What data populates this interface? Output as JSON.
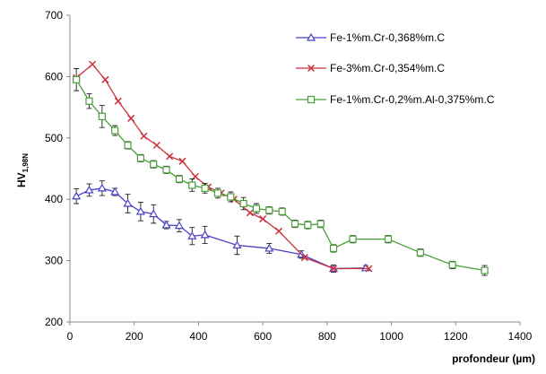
{
  "chart_data": {
    "type": "line",
    "xlabel": "profondeur (µm)",
    "ylabel": "HV",
    "ylabel_subscript": "1,98N",
    "xlim": [
      0,
      1400
    ],
    "ylim": [
      200,
      700
    ],
    "xticks": [
      0,
      200,
      400,
      600,
      800,
      1000,
      1200,
      1400
    ],
    "yticks": [
      200,
      300,
      400,
      500,
      600,
      700
    ],
    "grid": false,
    "legend_position": "top-right",
    "series": [
      {
        "name": "Fe-1%m.Cr-0,368%m.C",
        "color": "#4a3fc6",
        "marker": "triangle",
        "x": [
          20,
          60,
          100,
          140,
          180,
          220,
          260,
          300,
          340,
          380,
          420,
          520,
          620,
          720,
          820,
          920
        ],
        "y": [
          405,
          415,
          418,
          412,
          393,
          380,
          376,
          358,
          357,
          340,
          342,
          325,
          320,
          310,
          287,
          288
        ],
        "err": [
          12,
          10,
          12,
          6,
          15,
          15,
          15,
          6,
          10,
          14,
          14,
          15,
          8,
          6,
          6,
          4
        ]
      },
      {
        "name": "Fe-3%m.Cr-0,354%m.C",
        "color": "#c8323c",
        "marker": "x",
        "x": [
          20,
          70,
          110,
          150,
          190,
          230,
          270,
          310,
          350,
          390,
          430,
          470,
          510,
          560,
          600,
          650,
          730,
          820,
          930
        ],
        "y": [
          598,
          620,
          595,
          560,
          532,
          503,
          488,
          470,
          462,
          437,
          420,
          410,
          400,
          378,
          368,
          348,
          305,
          287,
          287
        ]
      },
      {
        "name": "Fe-1%m.Cr-0,2%m.Al-0,375%m.C",
        "color": "#4a9e3a",
        "marker": "square",
        "x": [
          20,
          60,
          100,
          140,
          180,
          220,
          260,
          300,
          340,
          380,
          420,
          460,
          500,
          540,
          580,
          620,
          660,
          700,
          740,
          780,
          820,
          880,
          990,
          1090,
          1190,
          1290
        ],
        "y": [
          595,
          560,
          535,
          512,
          488,
          467,
          457,
          448,
          433,
          423,
          418,
          410,
          404,
          393,
          385,
          382,
          380,
          360,
          358,
          360,
          320,
          335,
          335,
          313,
          293,
          284
        ],
        "err": [
          18,
          12,
          18,
          8,
          6,
          6,
          6,
          6,
          6,
          10,
          8,
          8,
          8,
          10,
          8,
          6,
          6,
          6,
          6,
          6,
          6,
          6,
          6,
          6,
          6,
          8
        ]
      }
    ]
  }
}
